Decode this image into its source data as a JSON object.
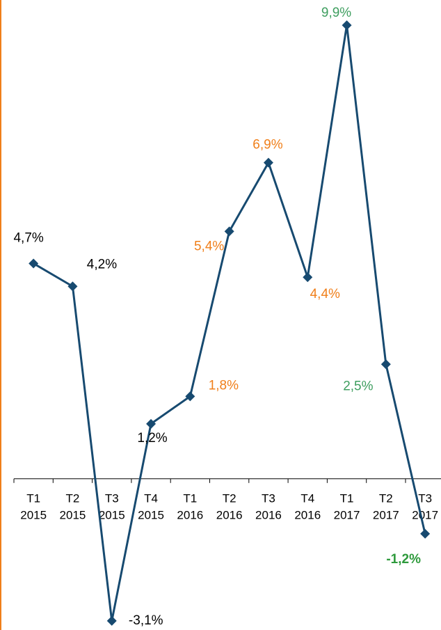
{
  "chart_data": {
    "type": "line",
    "categories": [
      [
        "T1",
        "2015"
      ],
      [
        "T2",
        "2015"
      ],
      [
        "T3",
        "2015"
      ],
      [
        "T4",
        "2015"
      ],
      [
        "T1",
        "2016"
      ],
      [
        "T2",
        "2016"
      ],
      [
        "T3",
        "2016"
      ],
      [
        "T4",
        "2016"
      ],
      [
        "T1",
        "2017"
      ],
      [
        "T2",
        "2017"
      ],
      [
        "T3",
        "2017"
      ]
    ],
    "values": [
      4.7,
      4.2,
      -3.1,
      1.2,
      1.8,
      5.4,
      6.9,
      4.4,
      9.9,
      2.5,
      -1.2
    ],
    "value_labels": [
      "4,7%",
      "4,2%",
      "-3,1%",
      "1,2%",
      "1,8%",
      "5,4%",
      "6,9%",
      "4,4%",
      "9,9%",
      "2,5%",
      "-1,2%"
    ],
    "label_colors": [
      "#000000",
      "#000000",
      "#000000",
      "#000000",
      "#f07f1a",
      "#f07f1a",
      "#f07f1a",
      "#f07f1a",
      "#3e9e5f",
      "#3e9e5f",
      "#2e9a3c"
    ],
    "color": "#174a70",
    "ylim": [
      -3.3,
      10.45
    ]
  }
}
